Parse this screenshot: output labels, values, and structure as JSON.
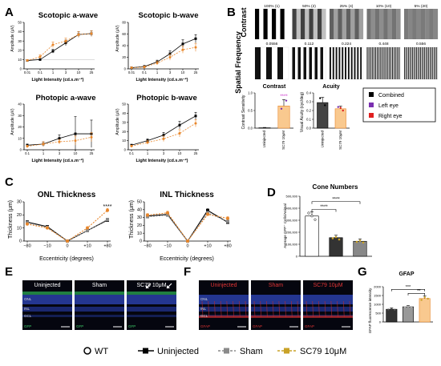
{
  "panels": {
    "A": {
      "letter": "A",
      "charts": [
        {
          "title": "Scotopic a-wave",
          "ylabel": "Amplitude (μV)",
          "xlabel": "Light Intensity (cd.s.m⁻²)",
          "x_ticks": [
            "0.01",
            "0.1",
            "1",
            "3",
            "10",
            "25"
          ],
          "y_ticks": [
            "0",
            "10",
            "20",
            "30",
            "40",
            "50"
          ]
        },
        {
          "title": "Scotopic b-wave",
          "ylabel": "Amplitude (μV)",
          "xlabel": "Light Intensity (cd.s.m⁻²)",
          "x_ticks": [
            "0.01",
            "0.1",
            "1",
            "3",
            "10",
            "25"
          ],
          "y_ticks": [
            "0",
            "20",
            "40",
            "60",
            "80"
          ]
        },
        {
          "title": "Photopic a-wave",
          "ylabel": "Amplitude (μV)",
          "xlabel": "Light Intensity (cd.s.m⁻²)",
          "x_ticks": [
            "0.1",
            "1",
            "3",
            "10",
            "25"
          ],
          "y_ticks": [
            "0",
            "10",
            "20",
            "30",
            "40"
          ]
        },
        {
          "title": "Photopic b-wave",
          "ylabel": "Amplitude (μV)",
          "xlabel": "Light Intensity (cd.s.m⁻²)",
          "x_ticks": [
            "0.1",
            "1",
            "3",
            "10",
            "25"
          ],
          "y_ticks": [
            "0",
            "10",
            "20",
            "30",
            "40",
            "50"
          ]
        }
      ]
    },
    "B": {
      "letter": "B",
      "row1_label": "Contrast",
      "row2_label": "Spatial Frequency",
      "contrast_labels": [
        "100% (1)",
        "50% (2)",
        "25% (4)",
        "10% (10)",
        "5% (20)"
      ],
      "contrast_levels": [
        1.0,
        0.5,
        0.25,
        0.1,
        0.05
      ],
      "freq_labels": [
        "0.0556",
        "0.112",
        "0.224",
        "0.448",
        "0.556"
      ],
      "freq_stripes": [
        6,
        12,
        22,
        40,
        50
      ],
      "bar_left": {
        "title": "Contrast",
        "ylabel": "Contrast Sensitivity",
        "categories": [
          "Uninjected",
          "SC79 10μM"
        ],
        "sig": "****"
      },
      "bar_right": {
        "title": "Acuity",
        "ylabel": "Visual Acuity (cyc/deg)",
        "categories": [
          "Uninjected",
          "SC79 10μM"
        ]
      },
      "legend": [
        "Combined",
        "Left eye",
        "Right eye"
      ]
    },
    "C": {
      "letter": "C",
      "charts": [
        {
          "title": "ONL Thickness",
          "ylabel": "Thickness (μm)",
          "xlabel": "Eccentricity (degrees)",
          "x_ticks": [
            "−80",
            "−10",
            "0",
            "+10",
            "+80"
          ],
          "y_ticks": [
            "0",
            "10",
            "20",
            "30"
          ],
          "sig": "****"
        },
        {
          "title": "INL Thickness",
          "ylabel": "Thickness (μm)",
          "xlabel": "Eccentricity (degrees)",
          "x_ticks": [
            "−80",
            "−10",
            "0",
            "+10",
            "+80"
          ],
          "y_ticks": [
            "0",
            "10",
            "20",
            "30",
            "40",
            "50"
          ],
          "sig": "*"
        }
      ]
    },
    "D": {
      "letter": "D",
      "title": "Cone Numbers",
      "ylabel": "Average GFP⁺ Cells/Animal",
      "y_ticks": [
        "0",
        "100,000",
        "200,000",
        "300,000",
        "400,000",
        "500,000"
      ],
      "sig": [
        "****",
        "****"
      ]
    },
    "E": {
      "letter": "E",
      "images": [
        {
          "title": "Uninjected",
          "layers": [
            "ONL",
            "INL",
            "GCL"
          ],
          "stain": "GFP"
        },
        {
          "title": "Sham",
          "stain": "GFP"
        },
        {
          "title": "SC79 10μM",
          "stain": "GFP"
        }
      ]
    },
    "F": {
      "letter": "F",
      "images": [
        {
          "title": "Uninjected",
          "layers": [
            "ONL",
            "INL",
            "GCL"
          ],
          "stain": "GFAP"
        },
        {
          "title": "Sham",
          "stain": "GFAP"
        },
        {
          "title": "SC79 10μM",
          "stain": "GFAP"
        }
      ]
    },
    "G": {
      "letter": "G",
      "title": "GFAP",
      "ylabel": "GFAP fluorescence intensity",
      "y_ticks": [
        "0",
        "500",
        "1000",
        "1500",
        "2000"
      ],
      "sig": [
        "***",
        "**"
      ]
    }
  },
  "legend": {
    "items": [
      {
        "label": "WT",
        "marker": "circle-open",
        "color": "#000000"
      },
      {
        "label": "Uninjected",
        "marker": "square",
        "color": "#000000"
      },
      {
        "label": "Sham",
        "marker": "square",
        "color": "#8a8a8a"
      },
      {
        "label": "SC79 10μM",
        "marker": "square",
        "color": "#c9a227"
      }
    ]
  },
  "colors": {
    "uninjected": "#000000",
    "sc79": "#e8862a",
    "sham": "#8a8a8a",
    "sc79_bar": "#f9c98f",
    "gold": "#c9a227",
    "left_eye": "#7a2fb0",
    "right_eye": "#e02020"
  },
  "chart_data": [
    {
      "type": "line",
      "title": "Scotopic a-wave",
      "xlabel": "Light Intensity (cd.s.m⁻²)",
      "ylabel": "Amplitude (μV)",
      "categories": [
        "0.01",
        "0.1",
        "1",
        "3",
        "10",
        "25"
      ],
      "ylim": [
        0,
        50
      ],
      "series": [
        {
          "name": "Uninjected",
          "values": [
            9,
            10,
            19,
            28,
            37,
            38
          ],
          "errors": [
            1,
            1,
            2,
            3,
            3,
            3
          ]
        },
        {
          "name": "SC79 10μM",
          "values": [
            9,
            13,
            26,
            30,
            37,
            38
          ],
          "errors": [
            1,
            2,
            3,
            3,
            3,
            3
          ]
        }
      ]
    },
    {
      "type": "line",
      "title": "Scotopic b-wave",
      "xlabel": "Light Intensity (cd.s.m⁻²)",
      "ylabel": "Amplitude (μV)",
      "categories": [
        "0.01",
        "0.1",
        "1",
        "3",
        "10",
        "25"
      ],
      "ylim": [
        0,
        80
      ],
      "series": [
        {
          "name": "Uninjected",
          "values": [
            2,
            4,
            12,
            26,
            43,
            52
          ],
          "errors": [
            1,
            2,
            3,
            5,
            7,
            7
          ]
        },
        {
          "name": "SC79 10μM",
          "values": [
            2,
            3,
            10,
            20,
            33,
            37
          ],
          "errors": [
            1,
            2,
            3,
            5,
            6,
            7
          ]
        }
      ]
    },
    {
      "type": "line",
      "title": "Photopic a-wave",
      "xlabel": "Light Intensity (cd.s.m⁻²)",
      "ylabel": "Amplitude (μV)",
      "categories": [
        "0.1",
        "1",
        "3",
        "10",
        "25"
      ],
      "ylim": [
        0,
        40
      ],
      "series": [
        {
          "name": "Uninjected",
          "values": [
            4,
            5,
            10,
            14,
            14
          ],
          "errors": [
            1,
            2,
            3,
            15,
            12
          ]
        },
        {
          "name": "SC79 10μM",
          "values": [
            3,
            5,
            7,
            8,
            11
          ],
          "errors": [
            1,
            2,
            2,
            4,
            4
          ]
        }
      ]
    },
    {
      "type": "line",
      "title": "Photopic b-wave",
      "xlabel": "Light Intensity (cd.s.m⁻²)",
      "ylabel": "Amplitude (μV)",
      "categories": [
        "0.1",
        "1",
        "3",
        "10",
        "25"
      ],
      "ylim": [
        0,
        50
      ],
      "series": [
        {
          "name": "Uninjected",
          "values": [
            5,
            10,
            16,
            27,
            37
          ],
          "errors": [
            1,
            2,
            3,
            4,
            4
          ]
        },
        {
          "name": "SC79 10μM",
          "values": [
            4,
            8,
            12,
            18,
            29
          ],
          "errors": [
            1,
            2,
            3,
            4,
            4
          ]
        }
      ]
    },
    {
      "type": "bar",
      "title": "Contrast",
      "ylabel": "Contrast Sensitivity",
      "categories": [
        "Uninjected",
        "SC79 10μM"
      ],
      "ylim": [
        0,
        1.0
      ],
      "values": [
        0.01,
        0.63
      ],
      "errors": [
        0.01,
        0.18
      ]
    },
    {
      "type": "bar",
      "title": "Acuity",
      "ylabel": "Visual Acuity (cyc/deg)",
      "categories": [
        "Uninjected",
        "SC79 10μM"
      ],
      "ylim": [
        0,
        0.4
      ],
      "values": [
        0.29,
        0.22
      ],
      "errors": [
        0.06,
        0.03
      ]
    },
    {
      "type": "line",
      "title": "ONL Thickness",
      "xlabel": "Eccentricity (degrees)",
      "ylabel": "Thickness (μm)",
      "categories": [
        "−80",
        "−10",
        "0",
        "+10",
        "+80"
      ],
      "ylim": [
        0,
        30
      ],
      "series": [
        {
          "name": "Uninjected",
          "values": [
            14.5,
            11,
            0,
            8,
            16
          ],
          "errors": [
            1,
            1,
            0,
            1,
            1
          ]
        },
        {
          "name": "Sham",
          "values": [
            14,
            10.5,
            0,
            8,
            16.5
          ],
          "errors": [
            1,
            1,
            0,
            1,
            1
          ]
        },
        {
          "name": "SC79 10μM",
          "values": [
            13,
            10,
            0,
            10,
            23.5
          ],
          "errors": [
            1,
            1,
            0,
            1,
            1.5
          ]
        }
      ]
    },
    {
      "type": "line",
      "title": "INL Thickness",
      "xlabel": "Eccentricity (degrees)",
      "ylabel": "Thickness (μm)",
      "categories": [
        "−80",
        "−10",
        "0",
        "+10",
        "+80"
      ],
      "ylim": [
        0,
        50
      ],
      "series": [
        {
          "name": "Uninjected",
          "values": [
            32,
            34,
            0,
            39,
            24
          ],
          "errors": [
            2,
            2,
            0,
            2,
            2
          ]
        },
        {
          "name": "Sham",
          "values": [
            31,
            33,
            0,
            36,
            25
          ],
          "errors": [
            2,
            2,
            0,
            2,
            2
          ]
        },
        {
          "name": "SC79 10μM",
          "values": [
            33,
            36,
            0,
            34,
            29
          ],
          "errors": [
            2,
            2,
            0,
            2,
            2
          ]
        }
      ]
    },
    {
      "type": "bar",
      "title": "Cone Numbers",
      "ylabel": "Average GFP⁺ Cells/Animal",
      "categories": [
        "WT",
        "Uninjected",
        "Sham"
      ],
      "ylim": [
        0,
        500000
      ],
      "values": [
        335000,
        155000,
        125000
      ],
      "errors": [
        35000,
        20000,
        20000
      ]
    },
    {
      "type": "bar",
      "title": "GFAP",
      "ylabel": "GFAP fluorescence intensity",
      "categories": [
        "Uninjected",
        "Sham",
        "SC79 10μM"
      ],
      "ylim": [
        0,
        2000
      ],
      "values": [
        720,
        860,
        1330
      ],
      "errors": [
        80,
        80,
        150
      ]
    }
  ]
}
